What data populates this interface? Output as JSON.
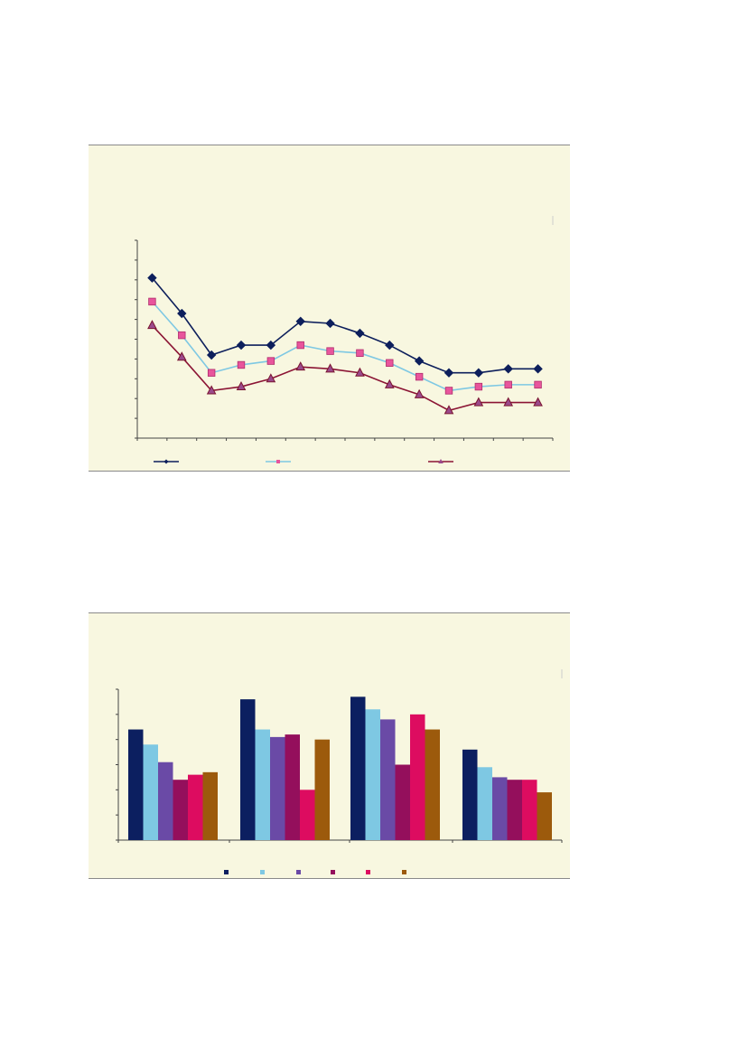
{
  "colors": {
    "panel_bg": "#f8f7e0",
    "axis": "#444444",
    "border": "#8a8a8a"
  },
  "chart_data": [
    {
      "type": "line",
      "title": "",
      "xlabel": "",
      "ylabel": "",
      "grid": false,
      "legend": "bottom",
      "x": [
        1,
        2,
        3,
        4,
        5,
        6,
        7,
        8,
        9,
        10,
        11,
        12,
        13,
        14
      ],
      "ylim": [
        0,
        100
      ],
      "series": [
        {
          "marker": "diamond",
          "color": "#0d1f5c",
          "marker_color": "#0d1f5c",
          "values": [
            81,
            63,
            42,
            47,
            47,
            59,
            58,
            53,
            47,
            39,
            33,
            33,
            35,
            35
          ]
        },
        {
          "marker": "square",
          "color": "#7ec8e3",
          "marker_color": "#e8559c",
          "values": [
            69,
            52,
            33,
            37,
            39,
            47,
            44,
            43,
            38,
            31,
            24,
            26,
            27,
            27
          ]
        },
        {
          "marker": "triangle",
          "color": "#8b1434",
          "marker_color": "#9b4a8c",
          "values": [
            57,
            41,
            24,
            26,
            30,
            36,
            35,
            33,
            27,
            22,
            14,
            18,
            18,
            18
          ]
        }
      ]
    },
    {
      "type": "bar",
      "title": "",
      "xlabel": "",
      "ylabel": "",
      "grid": false,
      "legend": "bottom",
      "categories": [
        "",
        "",
        "",
        ""
      ],
      "ylim": [
        0,
        60
      ],
      "series": [
        {
          "color": "#0c1f60",
          "values": [
            44,
            56,
            57,
            36
          ]
        },
        {
          "color": "#7ec8e3",
          "values": [
            38,
            44,
            52,
            29
          ]
        },
        {
          "color": "#6a4aa6",
          "values": [
            31,
            41,
            48,
            25
          ]
        },
        {
          "color": "#940f5c",
          "values": [
            24,
            42,
            30,
            24
          ]
        },
        {
          "color": "#dd0c60",
          "values": [
            26,
            20,
            50,
            24
          ]
        },
        {
          "color": "#9c5a0c",
          "values": [
            27,
            40,
            44,
            19
          ]
        }
      ]
    }
  ]
}
